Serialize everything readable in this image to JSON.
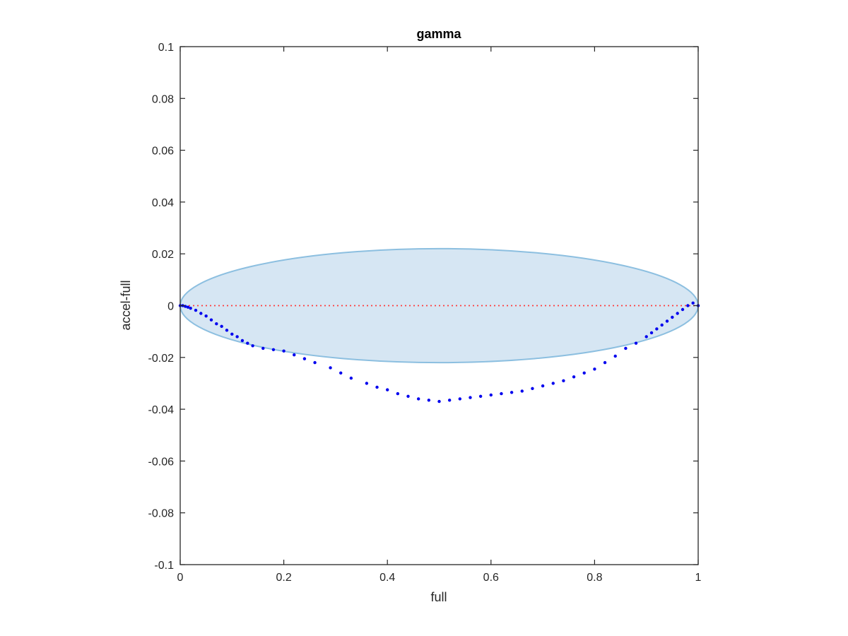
{
  "chart_data": {
    "type": "scatter",
    "title": "gamma",
    "xlabel": "full",
    "ylabel": "accel-full",
    "xlim": [
      0,
      1
    ],
    "ylim": [
      -0.1,
      0.1
    ],
    "xticks": [
      0,
      0.2,
      0.4,
      0.6,
      0.8,
      1
    ],
    "xtick_labels": [
      "0",
      "0.2",
      "0.4",
      "0.6",
      "0.8",
      "1"
    ],
    "yticks": [
      -0.1,
      -0.08,
      -0.06,
      -0.04,
      -0.02,
      0,
      0.02,
      0.04,
      0.06,
      0.08,
      0.1
    ],
    "ytick_labels": [
      "-0.1",
      "-0.08",
      "-0.06",
      "-0.04",
      "-0.02",
      "0",
      "0.02",
      "0.04",
      "0.06",
      "0.08",
      "0.1"
    ],
    "grid": false,
    "reference_line": {
      "y": 0,
      "style": "dotted",
      "color": "#ff3b3b"
    },
    "ellipse": {
      "cx": 0.5,
      "cy": 0,
      "rx": 0.5,
      "ry": 0.022,
      "fill": "#d6e6f3",
      "stroke": "#8cbfe0"
    },
    "series": [
      {
        "color": "#0000ee",
        "x": [
          0.0,
          0.005,
          0.01,
          0.015,
          0.02,
          0.03,
          0.04,
          0.05,
          0.06,
          0.07,
          0.08,
          0.09,
          0.1,
          0.11,
          0.12,
          0.13,
          0.14,
          0.16,
          0.18,
          0.2,
          0.22,
          0.24,
          0.26,
          0.29,
          0.31,
          0.33,
          0.36,
          0.38,
          0.4,
          0.42,
          0.44,
          0.46,
          0.48,
          0.5,
          0.52,
          0.54,
          0.56,
          0.58,
          0.6,
          0.62,
          0.64,
          0.66,
          0.68,
          0.7,
          0.72,
          0.74,
          0.76,
          0.78,
          0.8,
          0.82,
          0.84,
          0.86,
          0.88,
          0.9,
          0.91,
          0.92,
          0.93,
          0.94,
          0.95,
          0.96,
          0.97,
          0.98,
          0.99,
          1.0
        ],
        "y": [
          0.0,
          0.0,
          -0.0003,
          -0.0006,
          -0.001,
          -0.0018,
          -0.003,
          -0.004,
          -0.0055,
          -0.007,
          -0.008,
          -0.0095,
          -0.011,
          -0.012,
          -0.0135,
          -0.0145,
          -0.0155,
          -0.0165,
          -0.017,
          -0.0175,
          -0.019,
          -0.0205,
          -0.022,
          -0.024,
          -0.026,
          -0.028,
          -0.03,
          -0.0315,
          -0.0325,
          -0.034,
          -0.035,
          -0.036,
          -0.0365,
          -0.037,
          -0.0365,
          -0.036,
          -0.0355,
          -0.035,
          -0.0345,
          -0.034,
          -0.0335,
          -0.033,
          -0.032,
          -0.031,
          -0.03,
          -0.029,
          -0.0275,
          -0.026,
          -0.0245,
          -0.022,
          -0.0195,
          -0.0165,
          -0.0145,
          -0.012,
          -0.0105,
          -0.009,
          -0.0075,
          -0.006,
          -0.0045,
          -0.003,
          -0.0015,
          0.0,
          0.001,
          0.0
        ]
      }
    ]
  }
}
